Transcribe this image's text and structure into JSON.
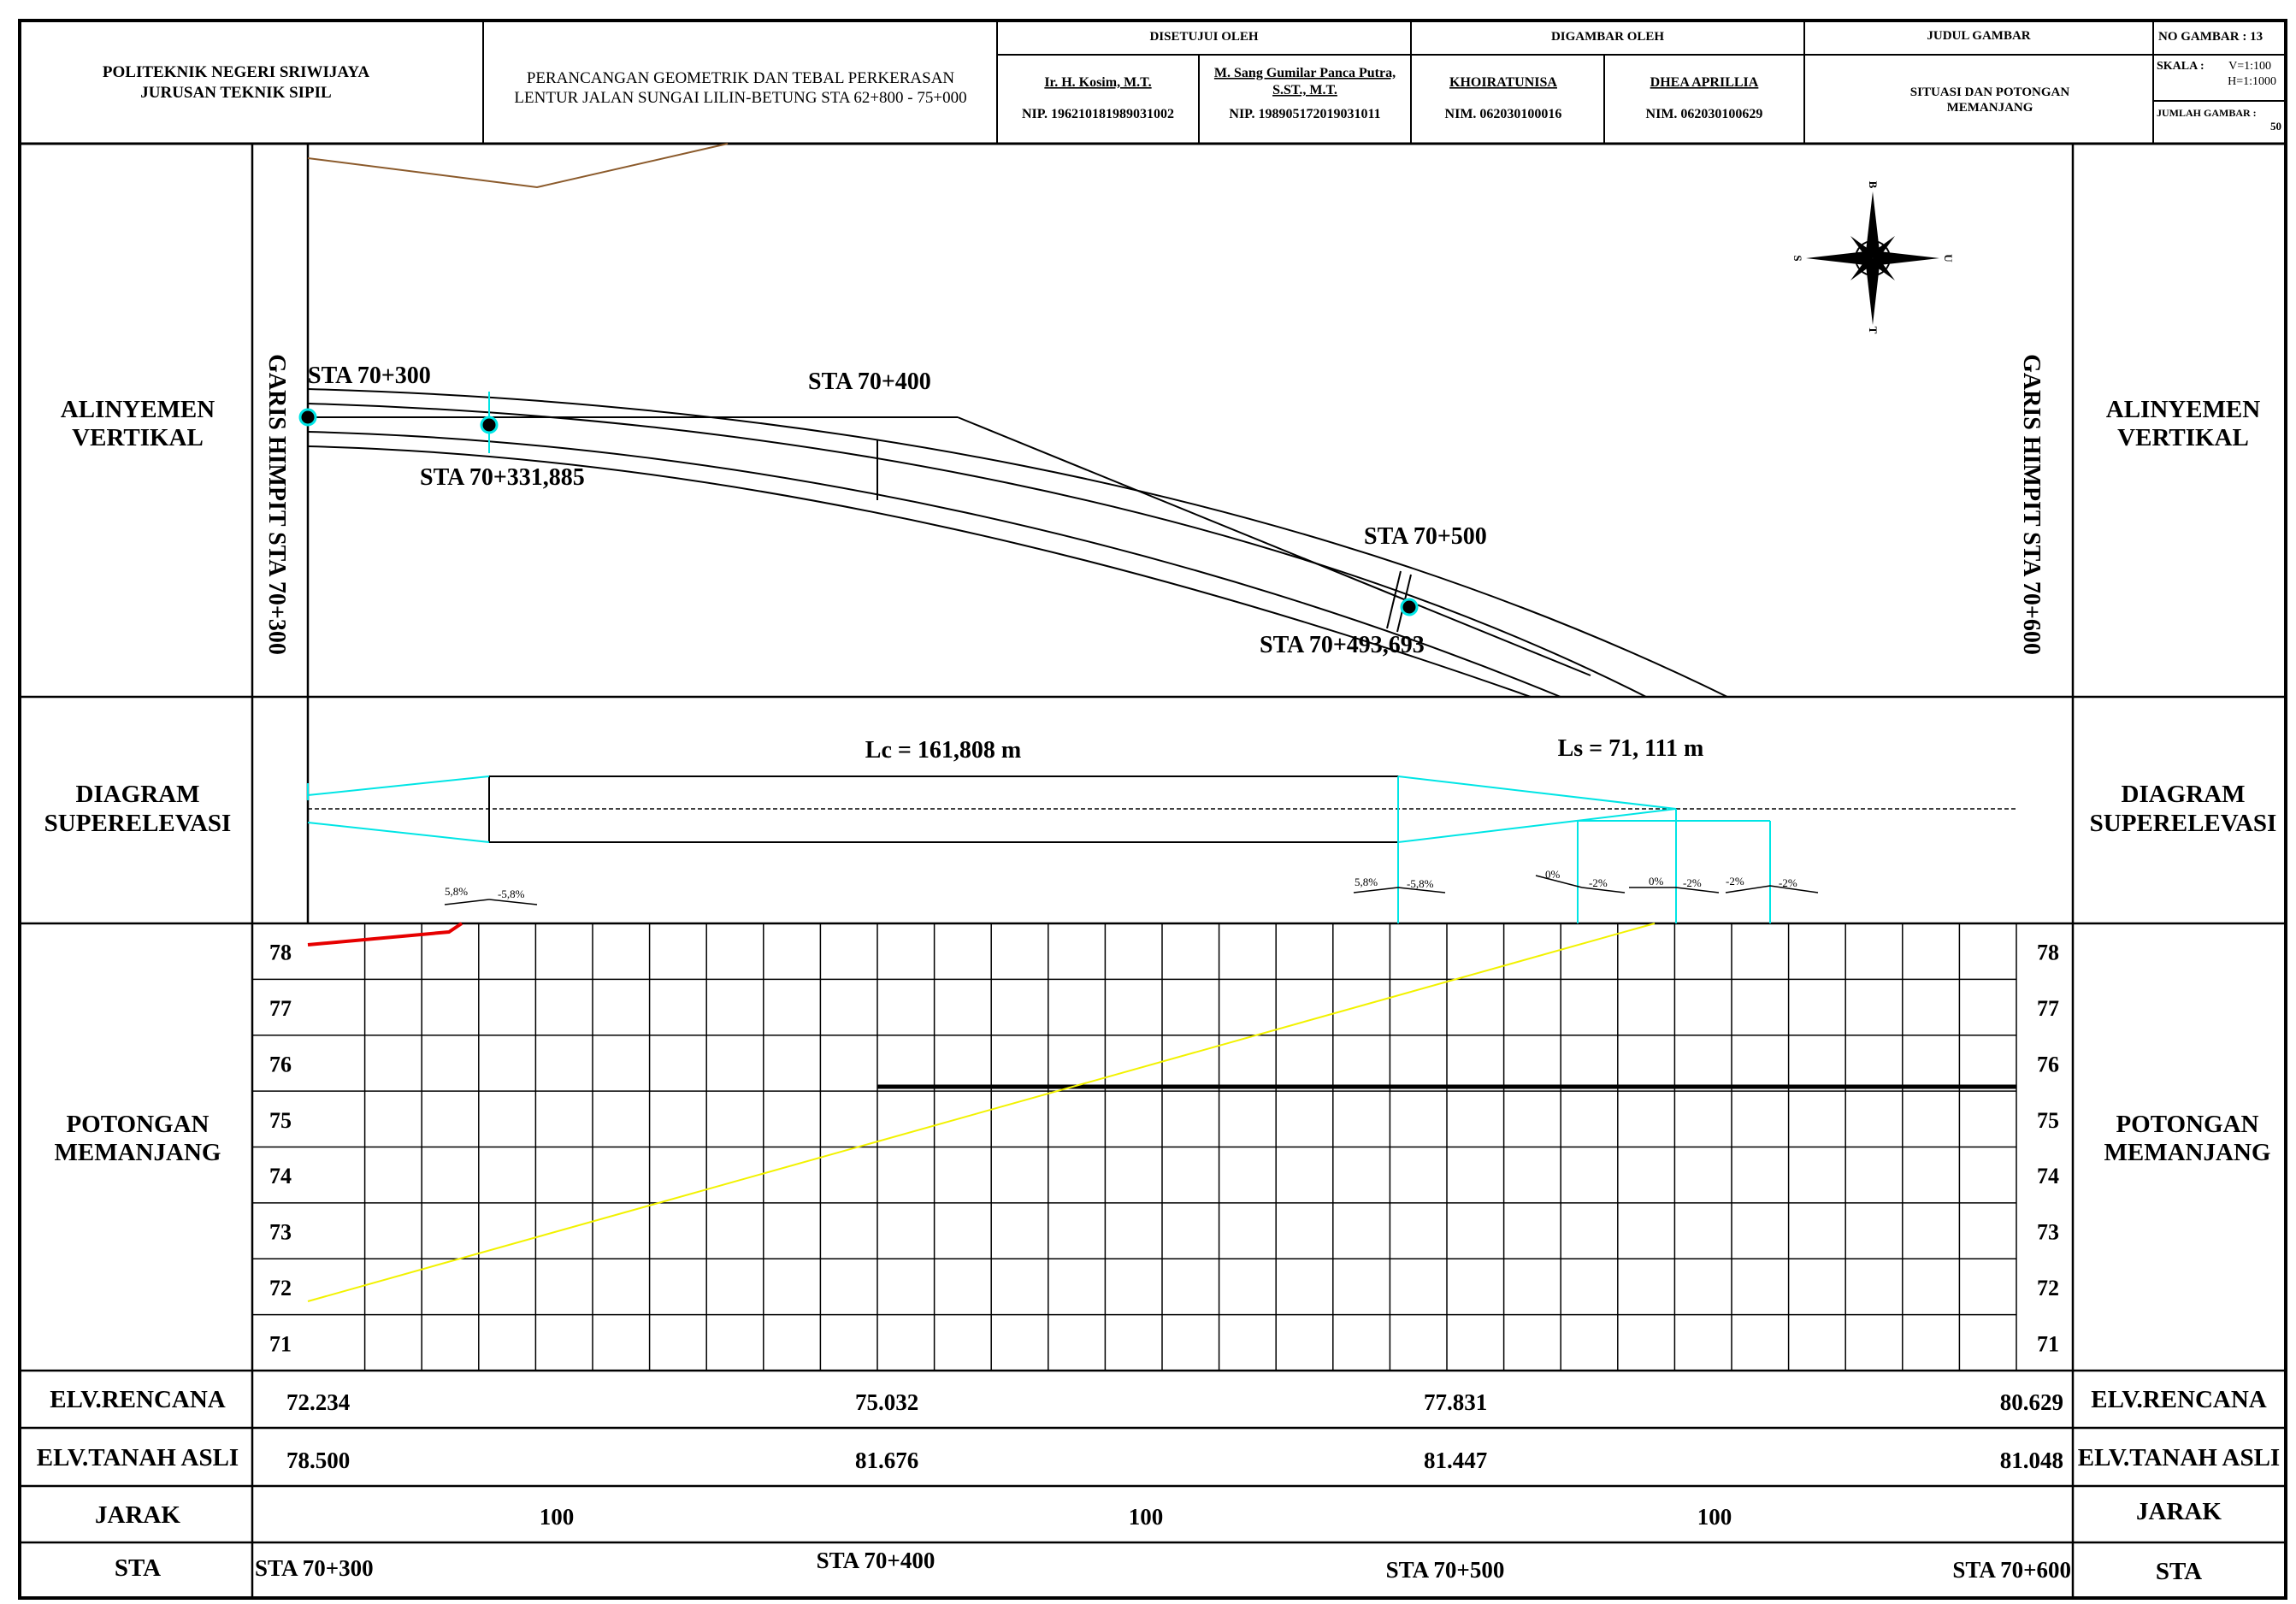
{
  "title_block": {
    "institution_line1": "POLITEKNIK NEGERI SRIWIJAYA",
    "institution_line2": "JURUSAN TEKNIK SIPIL",
    "project_line1": "PERANCANGAN GEOMETRIK DAN TEBAL PERKERASAN",
    "project_line2": "LENTUR JALAN SUNGAI LILIN-BETUNG STA 62+800 - 75+000",
    "approved_header": "DISETUJUI OLEH",
    "approver1_name": "Ir. H. Kosim, M.T.",
    "approver1_nip": "NIP. 196210181989031002",
    "approver2_name_line1": "M. Sang Gumilar Panca Putra,",
    "approver2_name_line2": "S.ST., M.T.",
    "approver2_nip": "NIP. 198905172019031011",
    "drawn_header": "DIGAMBAR OLEH",
    "drawer1_name": "KHOIRATUNISA",
    "drawer1_nim": "NIM. 062030100016",
    "drawer2_name": "DHEA APRILLIA",
    "drawer2_nim": "NIM. 062030100629",
    "drawing_title_header": "JUDUL GAMBAR",
    "drawing_title_line1": "SITUASI DAN POTONGAN",
    "drawing_title_line2": "MEMANJANG",
    "drawing_no": "NO GAMBAR : 13",
    "scale_label": "SKALA :",
    "scale_v": "V=1:100",
    "scale_h": "H=1:1000",
    "sheet_count_label": "JUMLAH GAMBAR :",
    "sheet_count": "50"
  },
  "row_labels": {
    "alignment_line1": "ALINYEMEN",
    "alignment_line2": "VERTIKAL",
    "superelevation_line1": "DIAGRAM",
    "superelevation_line2": "SUPERELEVASI",
    "profile_line1": "POTONGAN",
    "profile_line2": "MEMANJANG",
    "elv_design": "ELV.RENCANA",
    "elv_ground": "ELV.TANAH ASLI",
    "distance": "JARAK",
    "station": "STA"
  },
  "plan": {
    "match_line_left": "GARIS HIMPIT STA 70+300",
    "match_line_right": "GARIS HIMPIT STA 70+600",
    "sta_labels": [
      "STA 70+300",
      "STA 70+400",
      "STA 70+331,885",
      "STA 70+500",
      "STA 70+493,693"
    ],
    "north_arrow": {
      "top": "B",
      "bottom": "T",
      "left": "S",
      "right": "U"
    }
  },
  "superelevation": {
    "lc_label": "Lc = 161,808 m",
    "ls_label": "Ls = 71, 111 m",
    "slopes_1": [
      "5,8%",
      "-5,8%"
    ],
    "slopes_2": [
      "5,8%",
      "-5,8%"
    ],
    "slopes_3": [
      "0%",
      "-2%",
      "0%",
      "-2%",
      "-2%",
      "-2%"
    ]
  },
  "profile": {
    "elevation_ticks": [
      "78",
      "77",
      "76",
      "75",
      "74",
      "73",
      "72",
      "71"
    ],
    "elevation_min": 71,
    "elevation_max": 78
  },
  "table": {
    "elv_design": [
      "72.234",
      "75.032",
      "77.831",
      "80.629"
    ],
    "elv_ground": [
      "78.500",
      "81.676",
      "81.447",
      "81.048"
    ],
    "distances": [
      "100",
      "100",
      "100"
    ],
    "stations": [
      "STA 70+300",
      "STA 70+400",
      "STA 70+500",
      "STA 70+600"
    ]
  },
  "colors": {
    "line": "#000000",
    "cyan": "#00e5e5",
    "yellow": "#f2f200",
    "red": "#e60000",
    "brown": "#8b5a2b"
  }
}
